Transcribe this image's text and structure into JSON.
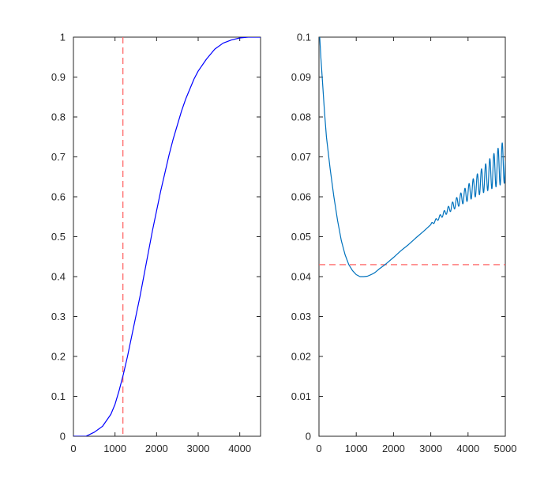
{
  "chart_data": [
    {
      "type": "line",
      "title": "",
      "xlabel": "",
      "ylabel": "",
      "xlim": [
        0,
        4500
      ],
      "ylim": [
        0,
        1
      ],
      "grid": false,
      "x_ticks": [
        0,
        1000,
        2000,
        3000,
        4000
      ],
      "x_tick_labels": [
        "0",
        "1000",
        "2000",
        "3000",
        "4000"
      ],
      "y_ticks": [
        0,
        0.1,
        0.2,
        0.3,
        0.4,
        0.5,
        0.6,
        0.7,
        0.8,
        0.9,
        1
      ],
      "y_tick_labels": [
        "0",
        "0.1",
        "0.2",
        "0.3",
        "0.4",
        "0.5",
        "0.6",
        "0.7",
        "0.8",
        "0.9",
        "1"
      ],
      "series": [
        {
          "color": "#0000ff",
          "x": [
            0,
            300,
            500,
            700,
            900,
            1000,
            1100,
            1200,
            1300,
            1400,
            1500,
            1600,
            1700,
            1800,
            1900,
            2000,
            2100,
            2200,
            2300,
            2400,
            2500,
            2600,
            2700,
            2800,
            2900,
            3000,
            3200,
            3400,
            3600,
            3800,
            4000,
            4200,
            4500
          ],
          "y": [
            0,
            0.0,
            0.01,
            0.025,
            0.055,
            0.08,
            0.115,
            0.155,
            0.2,
            0.25,
            0.3,
            0.35,
            0.405,
            0.46,
            0.515,
            0.565,
            0.615,
            0.66,
            0.705,
            0.745,
            0.78,
            0.815,
            0.845,
            0.87,
            0.895,
            0.915,
            0.945,
            0.97,
            0.985,
            0.993,
            0.998,
            1,
            1
          ]
        }
      ],
      "reference_lines": [
        {
          "orientation": "vertical",
          "value": 1190,
          "color": "#ff6666",
          "style": "dashed"
        }
      ]
    },
    {
      "type": "line",
      "title": "",
      "xlabel": "",
      "ylabel": "",
      "xlim": [
        0,
        5000
      ],
      "ylim": [
        0,
        0.1
      ],
      "grid": false,
      "x_ticks": [
        0,
        1000,
        2000,
        3000,
        4000,
        5000
      ],
      "x_tick_labels": [
        "0",
        "1000",
        "2000",
        "3000",
        "4000",
        "5000"
      ],
      "y_ticks": [
        0,
        0.01,
        0.02,
        0.03,
        0.04,
        0.05,
        0.06,
        0.07,
        0.08,
        0.09,
        0.1
      ],
      "y_tick_labels": [
        "0",
        "0.01",
        "0.02",
        "0.03",
        "0.04",
        "0.05",
        "0.06",
        "0.07",
        "0.08",
        "0.09",
        "0.1"
      ],
      "series": [
        {
          "color": "#0072bd",
          "x": [
            20,
            50,
            100,
            150,
            200,
            300,
            400,
            500,
            600,
            700,
            800,
            900,
            1000,
            1100,
            1200,
            1300,
            1400,
            1500,
            1600,
            1800,
            2000,
            2200,
            2400,
            2600,
            2800,
            3000
          ],
          "y": [
            0.1,
            0.095,
            0.088,
            0.081,
            0.075,
            0.067,
            0.06,
            0.054,
            0.049,
            0.0455,
            0.043,
            0.0415,
            0.0405,
            0.04,
            0.04,
            0.0401,
            0.0405,
            0.041,
            0.0418,
            0.0432,
            0.0448,
            0.0465,
            0.048,
            0.0497,
            0.0513,
            0.053
          ],
          "oscillating_tail": {
            "x_start": 3000,
            "x_end": 5000,
            "center_start": 0.053,
            "center_end": 0.069,
            "amplitude_start": 0.0003,
            "amplitude_end": 0.0055,
            "cycles": 18
          }
        }
      ],
      "reference_lines": [
        {
          "orientation": "horizontal",
          "value": 0.043,
          "color": "#ff6666",
          "style": "dashed"
        }
      ]
    }
  ]
}
